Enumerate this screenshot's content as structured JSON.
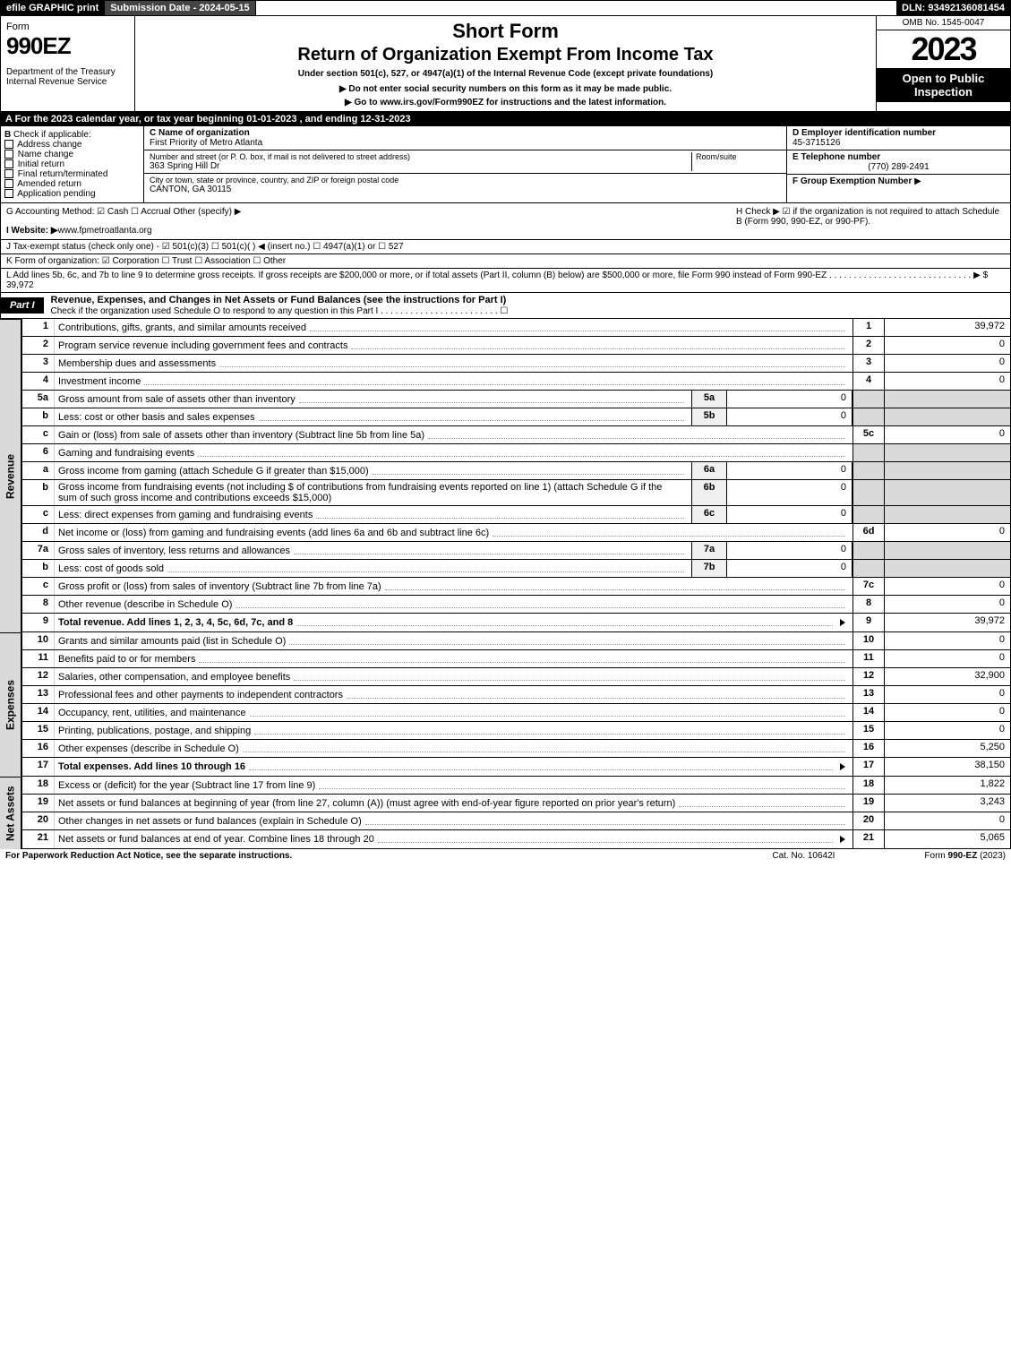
{
  "topbar": {
    "efile": "efile GRAPHIC print",
    "subdate": "Submission Date - 2024-05-15",
    "dln": "DLN: 93492136081454"
  },
  "header": {
    "form_label": "Form",
    "form_num": "990EZ",
    "dept": "Department of the Treasury\nInternal Revenue Service",
    "short": "Short Form",
    "title": "Return of Organization Exempt From Income Tax",
    "sub": "Under section 501(c), 527, or 4947(a)(1) of the Internal Revenue Code (except private foundations)",
    "note1": "▶ Do not enter social security numbers on this form as it may be made public.",
    "note2": "▶ Go to www.irs.gov/Form990EZ for instructions and the latest information.",
    "omb": "OMB No. 1545-0047",
    "year": "2023",
    "open": "Open to Public Inspection"
  },
  "row_a": "A  For the 2023 calendar year, or tax year beginning 01-01-2023 , and ending 12-31-2023",
  "col_b": {
    "hdr": "B",
    "label": "Check if applicable:",
    "opts": [
      "Address change",
      "Name change",
      "Initial return",
      "Final return/terminated",
      "Amended return",
      "Application pending"
    ]
  },
  "col_c": {
    "name_lab": "C Name of organization",
    "name": "First Priority of Metro Atlanta",
    "addr_lab": "Number and street (or P. O. box, if mail is not delivered to street address)",
    "room_lab": "Room/suite",
    "addr": "363 Spring Hill Dr",
    "city_lab": "City or town, state or province, country, and ZIP or foreign postal code",
    "city": "CANTON, GA  30115"
  },
  "col_d": {
    "d_lab": "D Employer identification number",
    "d_val": "45-3715126",
    "e_lab": "E Telephone number",
    "e_val": "(770) 289-2491",
    "f_lab": "F Group Exemption Number",
    "f_arrow": "▶"
  },
  "row_g": "G Accounting Method:  ☑ Cash  ☐ Accrual  Other (specify) ▶",
  "row_h": "H  Check ▶ ☑ if the organization is not required to attach Schedule B (Form 990, 990-EZ, or 990-PF).",
  "row_i": "I Website: ▶ www.fpmetroatlanta.org",
  "row_j": "J Tax-exempt status (check only one) - ☑ 501(c)(3) ☐ 501(c)(  ) ◀ (insert no.) ☐ 4947(a)(1) or ☐ 527",
  "row_k": "K Form of organization:  ☑ Corporation  ☐ Trust  ☐ Association  ☐ Other",
  "row_l": "L Add lines 5b, 6c, and 7b to line 9 to determine gross receipts. If gross receipts are $200,000 or more, or if total assets (Part II, column (B) below) are $500,000 or more, file Form 990 instead of Form 990-EZ . . . . . . . . . . . . . . . . . . . . . . . . . . . . . ▶ $ 39,972",
  "part1": {
    "label": "Part I",
    "title": "Revenue, Expenses, and Changes in Net Assets or Fund Balances (see the instructions for Part I)",
    "check": "Check if the organization used Schedule O to respond to any question in this Part I . . . . . . . . . . . . . . . . . . . . . . . . ☐"
  },
  "sections": {
    "revenue": "Revenue",
    "expenses": "Expenses",
    "netassets": "Net Assets"
  },
  "lines": [
    {
      "n": "1",
      "desc": "Contributions, gifts, grants, and similar amounts received",
      "ln": "1",
      "val": "39,972"
    },
    {
      "n": "2",
      "desc": "Program service revenue including government fees and contracts",
      "ln": "2",
      "val": "0"
    },
    {
      "n": "3",
      "desc": "Membership dues and assessments",
      "ln": "3",
      "val": "0"
    },
    {
      "n": "4",
      "desc": "Investment income",
      "ln": "4",
      "val": "0"
    },
    {
      "n": "5a",
      "desc": "Gross amount from sale of assets other than inventory",
      "sub": "5a",
      "subval": "0"
    },
    {
      "n": "b",
      "desc": "Less: cost or other basis and sales expenses",
      "sub": "5b",
      "subval": "0"
    },
    {
      "n": "c",
      "desc": "Gain or (loss) from sale of assets other than inventory (Subtract line 5b from line 5a)",
      "ln": "5c",
      "val": "0"
    },
    {
      "n": "6",
      "desc": "Gaming and fundraising events"
    },
    {
      "n": "a",
      "desc": "Gross income from gaming (attach Schedule G if greater than $15,000)",
      "sub": "6a",
      "subval": "0"
    },
    {
      "n": "b",
      "desc": "Gross income from fundraising events (not including $            of contributions from fundraising events reported on line 1) (attach Schedule G if the sum of such gross income and contributions exceeds $15,000)",
      "sub": "6b",
      "subval": "0"
    },
    {
      "n": "c",
      "desc": "Less: direct expenses from gaming and fundraising events",
      "sub": "6c",
      "subval": "0"
    },
    {
      "n": "d",
      "desc": "Net income or (loss) from gaming and fundraising events (add lines 6a and 6b and subtract line 6c)",
      "ln": "6d",
      "val": "0"
    },
    {
      "n": "7a",
      "desc": "Gross sales of inventory, less returns and allowances",
      "sub": "7a",
      "subval": "0"
    },
    {
      "n": "b",
      "desc": "Less: cost of goods sold",
      "sub": "7b",
      "subval": "0"
    },
    {
      "n": "c",
      "desc": "Gross profit or (loss) from sales of inventory (Subtract line 7b from line 7a)",
      "ln": "7c",
      "val": "0"
    },
    {
      "n": "8",
      "desc": "Other revenue (describe in Schedule O)",
      "ln": "8",
      "val": "0"
    },
    {
      "n": "9",
      "desc": "Total revenue. Add lines 1, 2, 3, 4, 5c, 6d, 7c, and 8",
      "ln": "9",
      "val": "39,972",
      "bold": true,
      "arrow": true
    }
  ],
  "exp_lines": [
    {
      "n": "10",
      "desc": "Grants and similar amounts paid (list in Schedule O)",
      "ln": "10",
      "val": "0"
    },
    {
      "n": "11",
      "desc": "Benefits paid to or for members",
      "ln": "11",
      "val": "0"
    },
    {
      "n": "12",
      "desc": "Salaries, other compensation, and employee benefits",
      "ln": "12",
      "val": "32,900"
    },
    {
      "n": "13",
      "desc": "Professional fees and other payments to independent contractors",
      "ln": "13",
      "val": "0"
    },
    {
      "n": "14",
      "desc": "Occupancy, rent, utilities, and maintenance",
      "ln": "14",
      "val": "0"
    },
    {
      "n": "15",
      "desc": "Printing, publications, postage, and shipping",
      "ln": "15",
      "val": "0"
    },
    {
      "n": "16",
      "desc": "Other expenses (describe in Schedule O)",
      "ln": "16",
      "val": "5,250"
    },
    {
      "n": "17",
      "desc": "Total expenses. Add lines 10 through 16",
      "ln": "17",
      "val": "38,150",
      "bold": true,
      "arrow": true
    }
  ],
  "na_lines": [
    {
      "n": "18",
      "desc": "Excess or (deficit) for the year (Subtract line 17 from line 9)",
      "ln": "18",
      "val": "1,822"
    },
    {
      "n": "19",
      "desc": "Net assets or fund balances at beginning of year (from line 27, column (A)) (must agree with end-of-year figure reported on prior year's return)",
      "ln": "19",
      "val": "3,243"
    },
    {
      "n": "20",
      "desc": "Other changes in net assets or fund balances (explain in Schedule O)",
      "ln": "20",
      "val": "0"
    },
    {
      "n": "21",
      "desc": "Net assets or fund balances at end of year. Combine lines 18 through 20",
      "ln": "21",
      "val": "5,065",
      "arrow": true
    }
  ],
  "footer": {
    "left": "For Paperwork Reduction Act Notice, see the separate instructions.",
    "mid": "Cat. No. 10642I",
    "right": "Form 990-EZ (2023)"
  }
}
